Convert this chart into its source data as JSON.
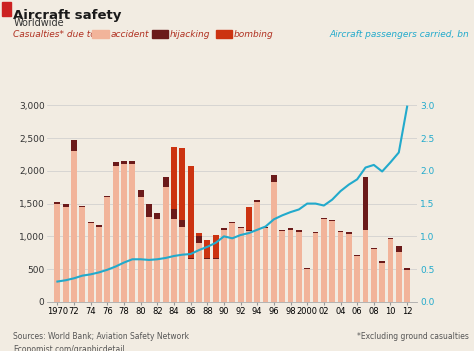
{
  "title": "Aircraft safety",
  "subtitle": "Worldwide",
  "legend_label": "Casualties* due to:",
  "right_axis_label": "Aircraft passengers carried, bn",
  "source_text": "Sources: World Bank; Aviation Safety Network",
  "footnote": "*Excluding ground casualties",
  "url": "Economist.com/graphicdetail",
  "years": [
    1970,
    1971,
    1972,
    1973,
    1974,
    1975,
    1976,
    1977,
    1978,
    1979,
    1980,
    1981,
    1982,
    1983,
    1984,
    1985,
    1986,
    1987,
    1988,
    1989,
    1990,
    1991,
    1992,
    1993,
    1994,
    1995,
    1996,
    1997,
    1998,
    1999,
    2000,
    2001,
    2002,
    2003,
    2004,
    2005,
    2006,
    2007,
    2008,
    2009,
    2010,
    2011,
    2012
  ],
  "accident": [
    1490,
    1450,
    2300,
    1450,
    1200,
    1150,
    1600,
    2080,
    2100,
    2100,
    1600,
    1300,
    1270,
    1750,
    1260,
    1150,
    650,
    900,
    650,
    650,
    1100,
    1200,
    1130,
    1080,
    1530,
    1130,
    1830,
    1080,
    1100,
    1070,
    500,
    1050,
    1260,
    1230,
    1060,
    1040,
    700,
    1100,
    800,
    600,
    960,
    760,
    490
  ],
  "hijacking": [
    30,
    50,
    170,
    20,
    20,
    20,
    20,
    50,
    50,
    50,
    100,
    200,
    80,
    150,
    150,
    100,
    20,
    100,
    20,
    20,
    20,
    20,
    20,
    20,
    20,
    20,
    100,
    20,
    20,
    20,
    20,
    20,
    20,
    20,
    20,
    20,
    20,
    800,
    20,
    20,
    20,
    100,
    20
  ],
  "bombing": [
    0,
    0,
    0,
    0,
    0,
    0,
    0,
    0,
    0,
    0,
    0,
    0,
    0,
    0,
    950,
    1100,
    1400,
    50,
    270,
    350,
    0,
    0,
    0,
    350,
    0,
    0,
    0,
    0,
    0,
    0,
    0,
    0,
    0,
    0,
    0,
    0,
    0,
    0,
    0,
    0,
    0,
    0,
    0
  ],
  "passengers": [
    0.31,
    0.33,
    0.36,
    0.4,
    0.42,
    0.45,
    0.49,
    0.54,
    0.6,
    0.65,
    0.65,
    0.64,
    0.65,
    0.67,
    0.7,
    0.72,
    0.73,
    0.79,
    0.84,
    0.9,
    1.0,
    0.97,
    1.02,
    1.05,
    1.1,
    1.15,
    1.26,
    1.32,
    1.37,
    1.41,
    1.5,
    1.5,
    1.47,
    1.56,
    1.69,
    1.79,
    1.87,
    2.05,
    2.09,
    1.99,
    2.13,
    2.28,
    2.98
  ],
  "accident_color": "#f2b49a",
  "hijacking_color": "#6b1a1a",
  "bombing_color": "#cc3311",
  "line_color": "#22aacc",
  "bar_width": 0.7,
  "ylim": [
    0,
    3000
  ],
  "ylim_right": [
    0,
    3.0
  ],
  "yticks_left": [
    0,
    500,
    1000,
    1500,
    2000,
    2500,
    3000
  ],
  "yticks_right": [
    0.0,
    0.5,
    1.0,
    1.5,
    2.0,
    2.5,
    3.0
  ],
  "xtick_labels": [
    "1970",
    "72",
    "74",
    "76",
    "78",
    "80",
    "82",
    "84",
    "86",
    "88",
    "90",
    "92",
    "94",
    "96",
    "98",
    "2000",
    "02",
    "04",
    "06",
    "08",
    "10",
    "12"
  ],
  "xtick_positions": [
    1970,
    1972,
    1974,
    1976,
    1978,
    1980,
    1982,
    1984,
    1986,
    1988,
    1990,
    1992,
    1994,
    1996,
    1998,
    2000,
    2002,
    2004,
    2006,
    2008,
    2010,
    2012
  ],
  "bg_color": "#f2ece2",
  "title_color": "#1a1a1a",
  "subtitle_color": "#333333",
  "legend_label_color": "#b03020",
  "legend_text_color": "#b03020",
  "right_label_color": "#22aacc",
  "source_color": "#555555",
  "red_bar_color": "#cc2222"
}
